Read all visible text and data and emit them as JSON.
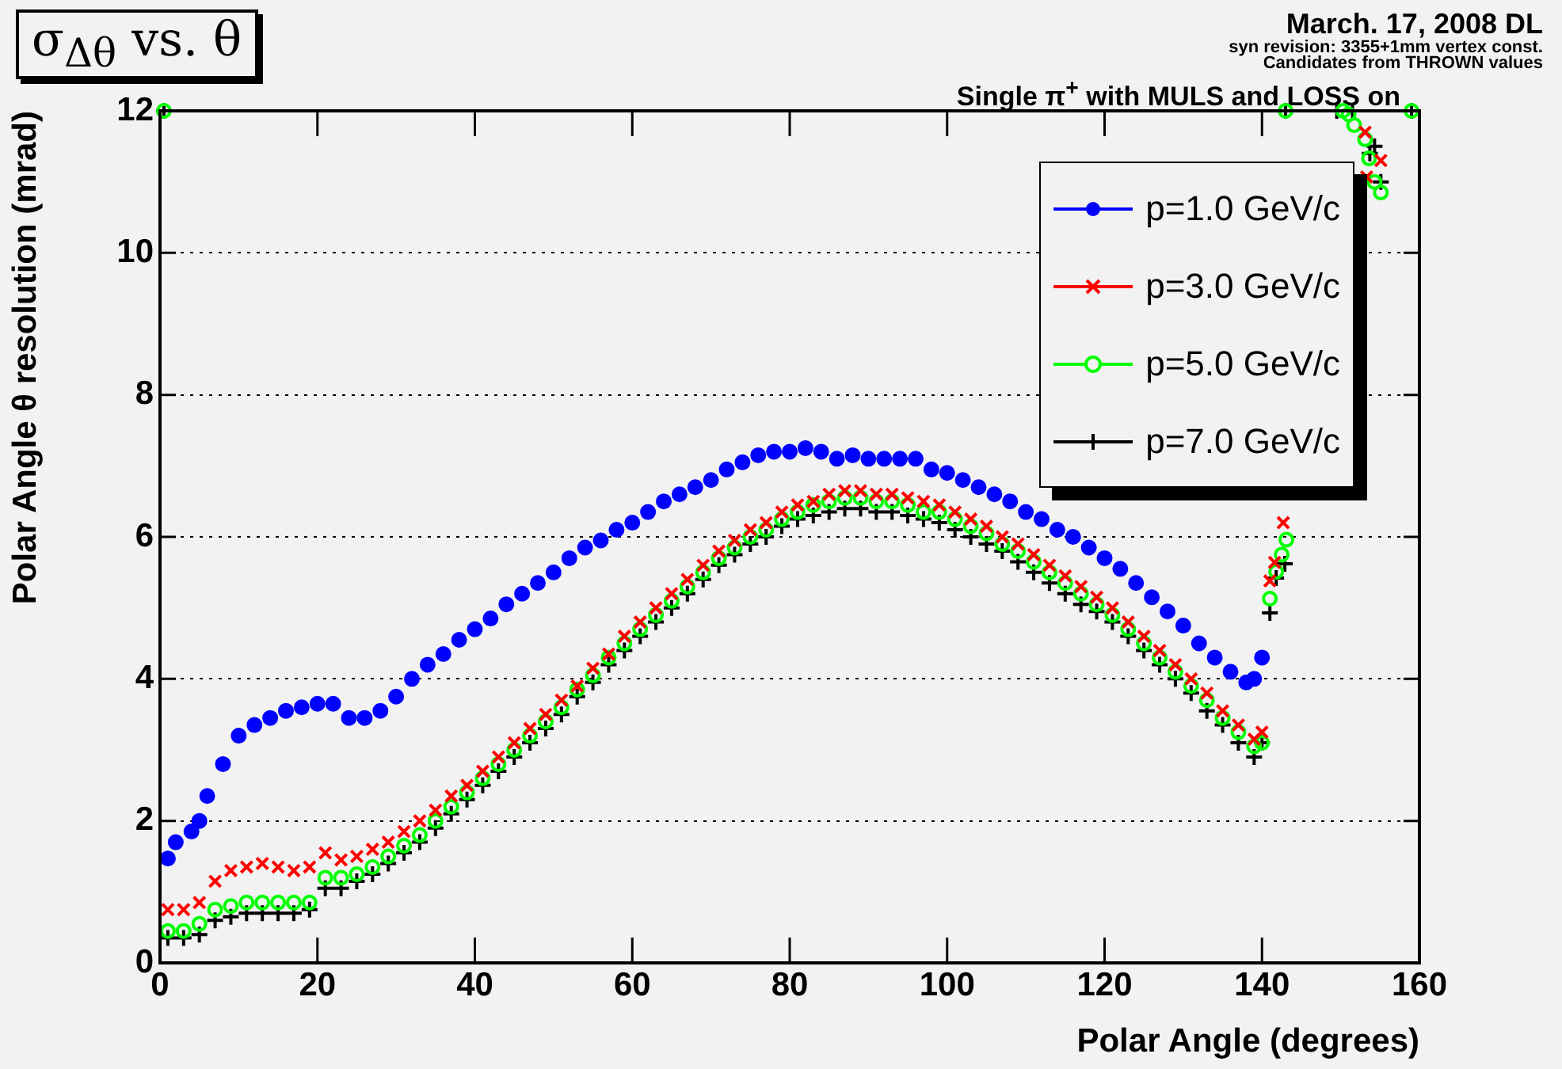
{
  "chart_data": {
    "type": "scatter",
    "title": "σ$_{Δθ}$ vs. θ",
    "xlabel": "Polar Angle (degrees)",
    "ylabel": "Polar Angle θ resolution (mrad)",
    "annotations": [
      "March. 17, 2008 DL",
      "syn revision: 3355+1mm vertex const.",
      "Candidates from THROWN values",
      "Single π$^{+}$ with MULS and LOSS on"
    ],
    "xlim": [
      0,
      160
    ],
    "xticks": [
      0,
      20,
      40,
      60,
      80,
      100,
      120,
      140,
      160
    ],
    "ylim": [
      0,
      12
    ],
    "yticks": [
      0,
      2,
      4,
      6,
      8,
      10,
      12
    ],
    "grid": "y",
    "legend": "top right",
    "series": [
      {
        "name": "p=1.0 GeV/c",
        "color": "#0000ff",
        "marker": "circle",
        "x": [
          1,
          2,
          4,
          5,
          6,
          8,
          10,
          12,
          14,
          16,
          18,
          20,
          22,
          24,
          26,
          28,
          30,
          32,
          34,
          36,
          38,
          40,
          42,
          44,
          46,
          48,
          50,
          52,
          54,
          56,
          58,
          60,
          62,
          64,
          66,
          68,
          70,
          72,
          74,
          76,
          78,
          80,
          82,
          84,
          86,
          88,
          90,
          92,
          94,
          96,
          98,
          100,
          102,
          104,
          106,
          108,
          110,
          112,
          114,
          116,
          118,
          120,
          122,
          124,
          126,
          128,
          130,
          132,
          134,
          136,
          138,
          139,
          140
        ],
        "values": [
          1.47,
          1.7,
          1.85,
          2.0,
          2.35,
          2.8,
          3.2,
          3.35,
          3.45,
          3.55,
          3.6,
          3.65,
          3.65,
          3.45,
          3.45,
          3.55,
          3.75,
          4.0,
          4.2,
          4.35,
          4.55,
          4.7,
          4.85,
          5.05,
          5.2,
          5.35,
          5.5,
          5.7,
          5.85,
          5.95,
          6.1,
          6.2,
          6.35,
          6.5,
          6.6,
          6.7,
          6.8,
          6.95,
          7.05,
          7.15,
          7.2,
          7.2,
          7.25,
          7.2,
          7.1,
          7.15,
          7.1,
          7.1,
          7.1,
          7.1,
          6.95,
          6.9,
          6.8,
          6.7,
          6.6,
          6.5,
          6.35,
          6.25,
          6.1,
          6.0,
          5.85,
          5.7,
          5.55,
          5.35,
          5.15,
          4.95,
          4.75,
          4.5,
          4.3,
          4.1,
          3.95,
          4.0,
          4.3
        ]
      },
      {
        "name": "p=3.0 GeV/c",
        "color": "#ff0000",
        "marker": "cross",
        "x": [
          1,
          3,
          5,
          7,
          9,
          11,
          13,
          15,
          17,
          19,
          21,
          23,
          25,
          27,
          29,
          31,
          33,
          35,
          37,
          39,
          41,
          43,
          45,
          47,
          49,
          51,
          53,
          55,
          57,
          59,
          61,
          63,
          65,
          67,
          69,
          71,
          73,
          75,
          77,
          79,
          81,
          83,
          85,
          87,
          89,
          91,
          93,
          95,
          97,
          99,
          101,
          103,
          105,
          107,
          109,
          111,
          113,
          115,
          117,
          119,
          121,
          123,
          125,
          127,
          129,
          131,
          133,
          135,
          137,
          139,
          140,
          141,
          141.6,
          142.7,
          153.1,
          153.3,
          155.1
        ],
        "values": [
          0.75,
          0.75,
          0.85,
          1.15,
          1.3,
          1.35,
          1.4,
          1.35,
          1.3,
          1.35,
          1.55,
          1.45,
          1.5,
          1.6,
          1.7,
          1.85,
          2.0,
          2.15,
          2.35,
          2.5,
          2.7,
          2.9,
          3.1,
          3.3,
          3.5,
          3.7,
          3.9,
          4.15,
          4.35,
          4.6,
          4.8,
          5.0,
          5.2,
          5.4,
          5.6,
          5.8,
          5.95,
          6.1,
          6.2,
          6.35,
          6.45,
          6.5,
          6.6,
          6.65,
          6.65,
          6.6,
          6.6,
          6.55,
          6.5,
          6.45,
          6.35,
          6.25,
          6.15,
          6.0,
          5.9,
          5.75,
          5.6,
          5.45,
          5.3,
          5.15,
          5.0,
          4.8,
          4.6,
          4.4,
          4.2,
          4.0,
          3.8,
          3.55,
          3.35,
          3.15,
          3.25,
          5.38,
          5.64,
          6.2,
          11.7,
          11.07,
          11.3
        ]
      },
      {
        "name": "p=5.0 GeV/c",
        "color": "#00ff00",
        "marker": "circle-open",
        "x": [
          0.5,
          1,
          3,
          5,
          7,
          9,
          11,
          13,
          15,
          17,
          19,
          21,
          23,
          25,
          27,
          29,
          31,
          33,
          35,
          37,
          39,
          41,
          43,
          45,
          47,
          49,
          51,
          53,
          55,
          57,
          59,
          61,
          63,
          65,
          67,
          69,
          71,
          73,
          75,
          77,
          79,
          81,
          83,
          85,
          87,
          89,
          91,
          93,
          95,
          97,
          99,
          101,
          103,
          105,
          107,
          109,
          111,
          113,
          115,
          117,
          119,
          121,
          123,
          125,
          127,
          129,
          131,
          133,
          135,
          137,
          139,
          140,
          141,
          141.8,
          142.5,
          143.1,
          143,
          150.3,
          151,
          151.7,
          153.1,
          153.6,
          154.3,
          155.1,
          159
        ],
        "values": [
          12,
          0.45,
          0.45,
          0.55,
          0.75,
          0.8,
          0.85,
          0.85,
          0.85,
          0.85,
          0.85,
          1.2,
          1.2,
          1.25,
          1.35,
          1.5,
          1.65,
          1.8,
          2.0,
          2.2,
          2.4,
          2.6,
          2.8,
          3.0,
          3.2,
          3.4,
          3.6,
          3.85,
          4.05,
          4.3,
          4.5,
          4.7,
          4.9,
          5.1,
          5.3,
          5.5,
          5.7,
          5.85,
          6.0,
          6.1,
          6.25,
          6.35,
          6.45,
          6.5,
          6.55,
          6.55,
          6.5,
          6.5,
          6.45,
          6.35,
          6.35,
          6.25,
          6.15,
          6.05,
          5.9,
          5.8,
          5.65,
          5.5,
          5.35,
          5.2,
          5.05,
          4.9,
          4.7,
          4.5,
          4.3,
          4.1,
          3.9,
          3.7,
          3.45,
          3.25,
          3.05,
          3.1,
          5.13,
          5.51,
          5.75,
          5.96,
          12,
          12,
          11.95,
          11.8,
          11.6,
          11.33,
          11.0,
          10.85,
          12
        ]
      },
      {
        "name": "p=7.0 GeV/c",
        "color": "#000000",
        "marker": "plus",
        "x": [
          0.5,
          1,
          3,
          5,
          7,
          9,
          11,
          13,
          15,
          17,
          19,
          21,
          23,
          25,
          27,
          29,
          31,
          33,
          35,
          37,
          39,
          41,
          43,
          45,
          47,
          49,
          51,
          53,
          55,
          57,
          59,
          61,
          63,
          65,
          67,
          69,
          71,
          73,
          75,
          77,
          79,
          81,
          83,
          85,
          87,
          89,
          91,
          93,
          95,
          97,
          99,
          101,
          103,
          105,
          107,
          109,
          111,
          113,
          115,
          117,
          119,
          121,
          123,
          125,
          127,
          129,
          131,
          133,
          135,
          137,
          139,
          140,
          141,
          141.8,
          142.9,
          143,
          149.5,
          151.5,
          153.7,
          154.3,
          155.1,
          159
        ],
        "values": [
          12,
          0.35,
          0.35,
          0.4,
          0.6,
          0.65,
          0.7,
          0.7,
          0.7,
          0.7,
          0.75,
          1.05,
          1.05,
          1.15,
          1.25,
          1.4,
          1.55,
          1.7,
          1.9,
          2.1,
          2.3,
          2.5,
          2.7,
          2.9,
          3.1,
          3.3,
          3.5,
          3.75,
          3.95,
          4.2,
          4.4,
          4.6,
          4.8,
          5.0,
          5.2,
          5.4,
          5.6,
          5.75,
          5.9,
          6.0,
          6.15,
          6.25,
          6.3,
          6.35,
          6.4,
          6.4,
          6.35,
          6.35,
          6.3,
          6.25,
          6.2,
          6.1,
          6.0,
          5.9,
          5.8,
          5.65,
          5.5,
          5.35,
          5.2,
          5.05,
          4.95,
          4.8,
          4.6,
          4.4,
          4.2,
          4.0,
          3.8,
          3.55,
          3.35,
          3.1,
          2.9,
          3.1,
          4.93,
          5.42,
          5.62,
          12,
          12,
          12,
          11.4,
          11.5,
          11.0,
          12
        ]
      }
    ]
  }
}
